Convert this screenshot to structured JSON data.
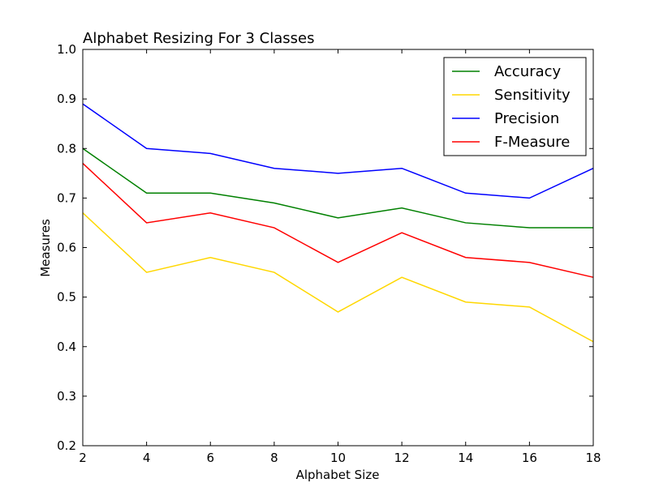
{
  "chart_data": {
    "type": "line",
    "title": "Alphabet Resizing For 3 Classes",
    "xlabel": "Alphabet Size",
    "ylabel": "Measures",
    "x": [
      2,
      4,
      6,
      8,
      10,
      12,
      14,
      16,
      18
    ],
    "xlim": [
      2,
      18
    ],
    "ylim": [
      0.2,
      1.0
    ],
    "xticks": [
      "2",
      "4",
      "6",
      "8",
      "10",
      "12",
      "14",
      "16",
      "18"
    ],
    "yticks": [
      "0.2",
      "0.3",
      "0.4",
      "0.5",
      "0.6",
      "0.7",
      "0.8",
      "0.9",
      "1.0"
    ],
    "grid": false,
    "legend_position": "top-right",
    "series": [
      {
        "name": "Accuracy",
        "color": "#008000",
        "values": [
          0.8,
          0.71,
          0.71,
          0.69,
          0.66,
          0.68,
          0.65,
          0.64,
          0.64
        ]
      },
      {
        "name": "Sensitivity",
        "color": "#FFD700",
        "values": [
          0.67,
          0.55,
          0.58,
          0.55,
          0.47,
          0.54,
          0.49,
          0.48,
          0.41
        ]
      },
      {
        "name": "Precision",
        "color": "#0000FF",
        "values": [
          0.89,
          0.8,
          0.79,
          0.76,
          0.75,
          0.76,
          0.71,
          0.7,
          0.76
        ]
      },
      {
        "name": "F-Measure",
        "color": "#FF0000",
        "values": [
          0.77,
          0.65,
          0.67,
          0.64,
          0.57,
          0.63,
          0.58,
          0.57,
          0.54
        ]
      }
    ]
  }
}
